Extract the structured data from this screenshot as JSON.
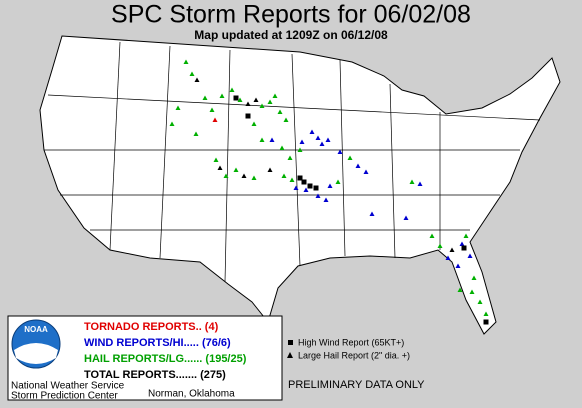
{
  "header": {
    "title": "SPC Storm Reports for 06/02/08",
    "subtitle": "Map updated at 1209Z on 06/12/08"
  },
  "legend": {
    "tornado": "TORNADO REPORTS.. (4)",
    "wind": "WIND REPORTS/HI..... (76/6)",
    "hail": "HAIL REPORTS/LG...... (195/25)",
    "total": "TOTAL REPORTS....... (275)",
    "logo": "NOAA",
    "agency_1": "National Weather Service",
    "agency_2": "Storm Prediction Center",
    "location": "Norman, Oklahoma"
  },
  "key": {
    "high_wind": "High Wind Report (65KT+)",
    "large_hail": "Large Hail Report (2\" dia. +)"
  },
  "footer": {
    "note": "PRELIMINARY DATA ONLY"
  }
}
